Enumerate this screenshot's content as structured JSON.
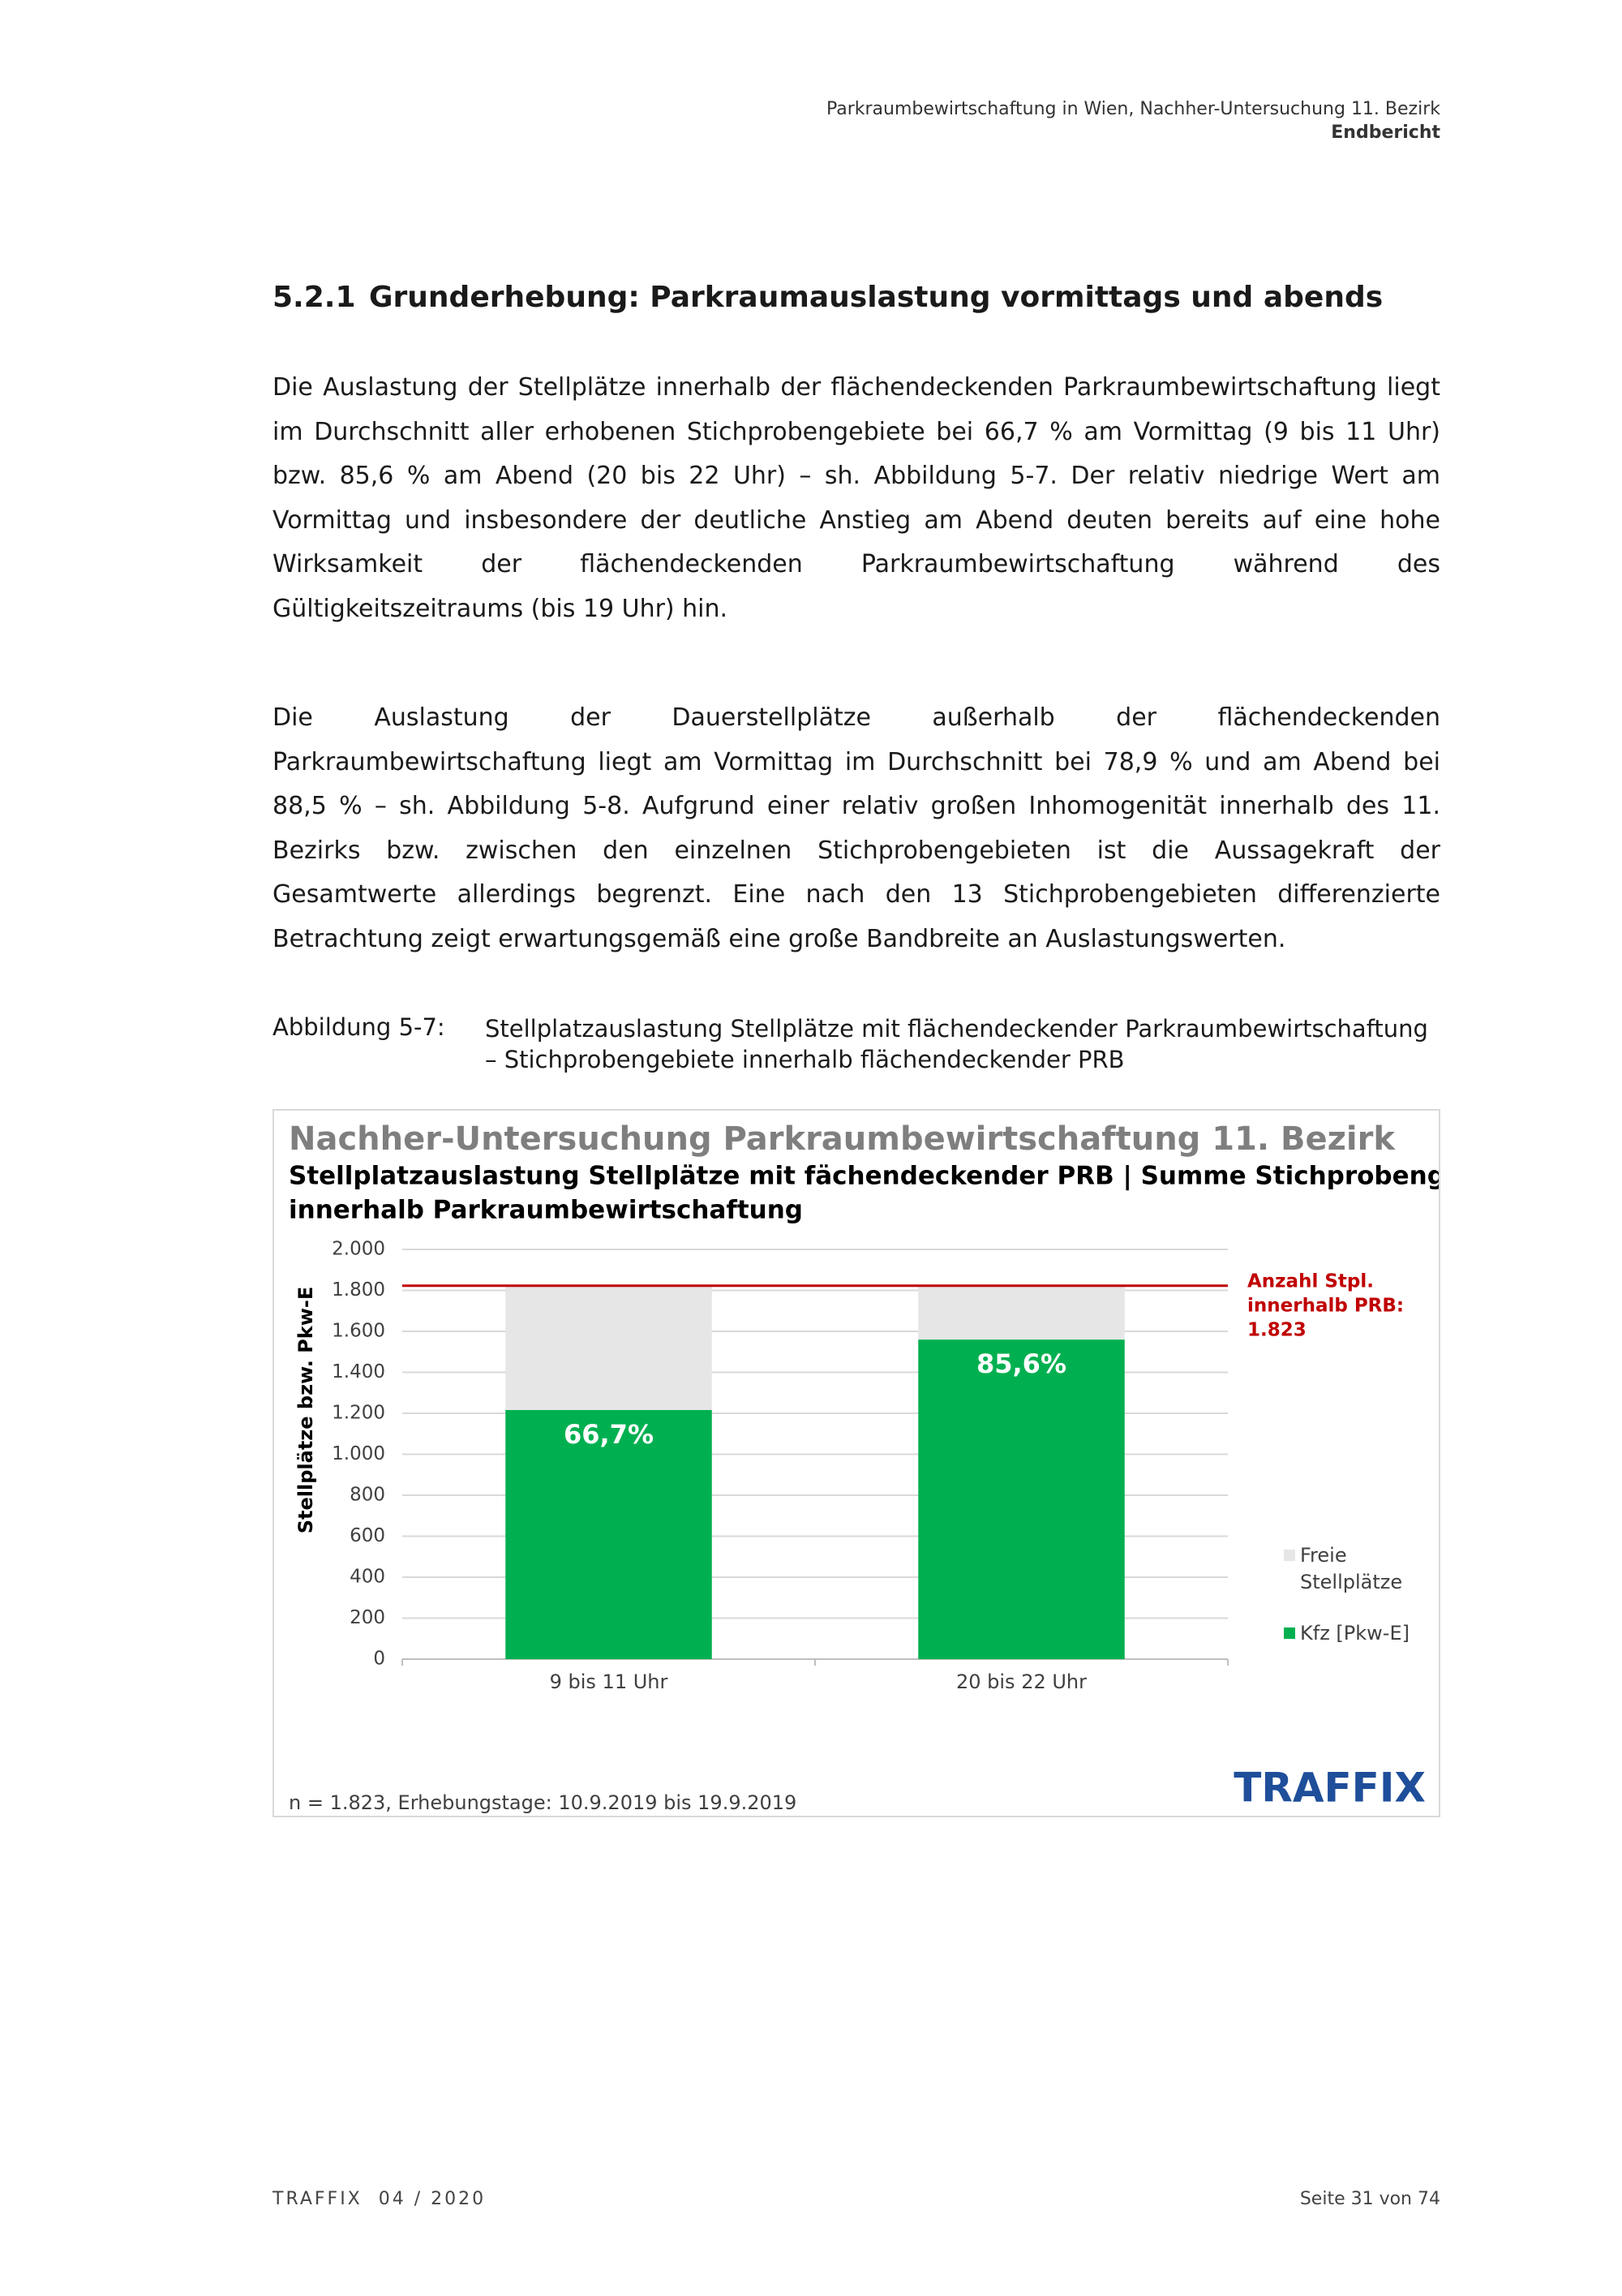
{
  "header": {
    "title": "Parkraumbewirtschaftung in Wien, Nachher-Untersuchung 11. Bezirk",
    "subtitle": "Endbericht"
  },
  "section": {
    "number": "5.2.1",
    "title": "Grunderhebung: Parkraumauslastung vormittags und abends"
  },
  "paragraphs": [
    "Die Auslastung der Stellplätze innerhalb der flächendeckenden Parkraumbewirtschaftung liegt im Durchschnitt aller erhobenen Stichprobengebiete bei 66,7 % am Vormittag (9 bis 11 Uhr) bzw. 85,6 % am Abend (20 bis 22 Uhr) – sh. Abbildung 5-7. Der relativ niedrige Wert am Vormittag und insbesondere der deutliche Anstieg am Abend deuten bereits auf eine hohe Wirksamkeit der flächendeckenden Parkraumbewirtschaftung während des Gültigkeitszeitraums (bis 19 Uhr) hin.",
    "Die Auslastung der Dauerstellplätze außerhalb der flächendeckenden Parkraumbewirtschaftung liegt am Vormittag im Durchschnitt bei 78,9 % und am Abend bei 88,5 % – sh. Abbildung 5-8. Aufgrund einer relativ großen Inhomogenität innerhalb des 11. Bezirks bzw. zwischen den einzelnen Stichprobengebieten ist die Aussagekraft der Gesamtwerte allerdings begrenzt. Eine nach den 13 Stichprobengebieten differenzierte Betrachtung zeigt erwartungsgemäß eine große Bandbreite an Auslastungswerten."
  ],
  "caption": {
    "label": "Abbildung 5-7:",
    "text": "Stellplatzauslastung Stellplätze mit flächendeckender Parkraumbewirtschaftung – Stichprobengebiete innerhalb flächendeckender PRB"
  },
  "chart_data": {
    "type": "bar",
    "stacked": true,
    "title": "Nachher-Untersuchung Parkraumbewirtschaftung 11. Bezirk",
    "subtitle": [
      "Stellplatzauslastung Stellplätze mit fächendeckender PRB | Summe Stichprobengebiete",
      "innerhalb Parkraumbewirtschaftung"
    ],
    "y_label": "Stellplätze bzw. Pkw-E",
    "categories": [
      "9 bis 11 Uhr",
      "20 bis 22 Uhr"
    ],
    "series": [
      {
        "name": "Kfz [Pkw-E]",
        "color": "#00b050",
        "values": [
          1216,
          1560
        ]
      },
      {
        "name": "Freie Stellplätze",
        "color": "#e6e6e6",
        "values": [
          607,
          263
        ]
      }
    ],
    "data_labels": [
      "66,7%",
      "85,6%"
    ],
    "legend_order": [
      1,
      0
    ],
    "ylim": [
      0,
      2000
    ],
    "yticks": [
      0,
      200,
      400,
      600,
      800,
      {
        "value": 1000,
        "label": "1.000"
      },
      {
        "value": 1200,
        "label": "1.200"
      },
      {
        "value": 1400,
        "label": "1.400"
      },
      {
        "value": 1600,
        "label": "1.600"
      },
      {
        "value": 1800,
        "label": "1.800"
      },
      {
        "value": 2000,
        "label": "2.000"
      }
    ],
    "grid": true,
    "reference_line": {
      "value": 1823,
      "color": "#c00000",
      "label": [
        "Anzahl Stpl.",
        "innerhalb PRB:",
        "1.823"
      ]
    },
    "footnote": "n = 1.823, Erhebungstage: 10.9.2019 bis 19.9.2019",
    "logo": "TRAFFIX"
  },
  "footer": {
    "left": "TRAFFIX  04 / 2020",
    "right": "Seite 31 von 74"
  }
}
